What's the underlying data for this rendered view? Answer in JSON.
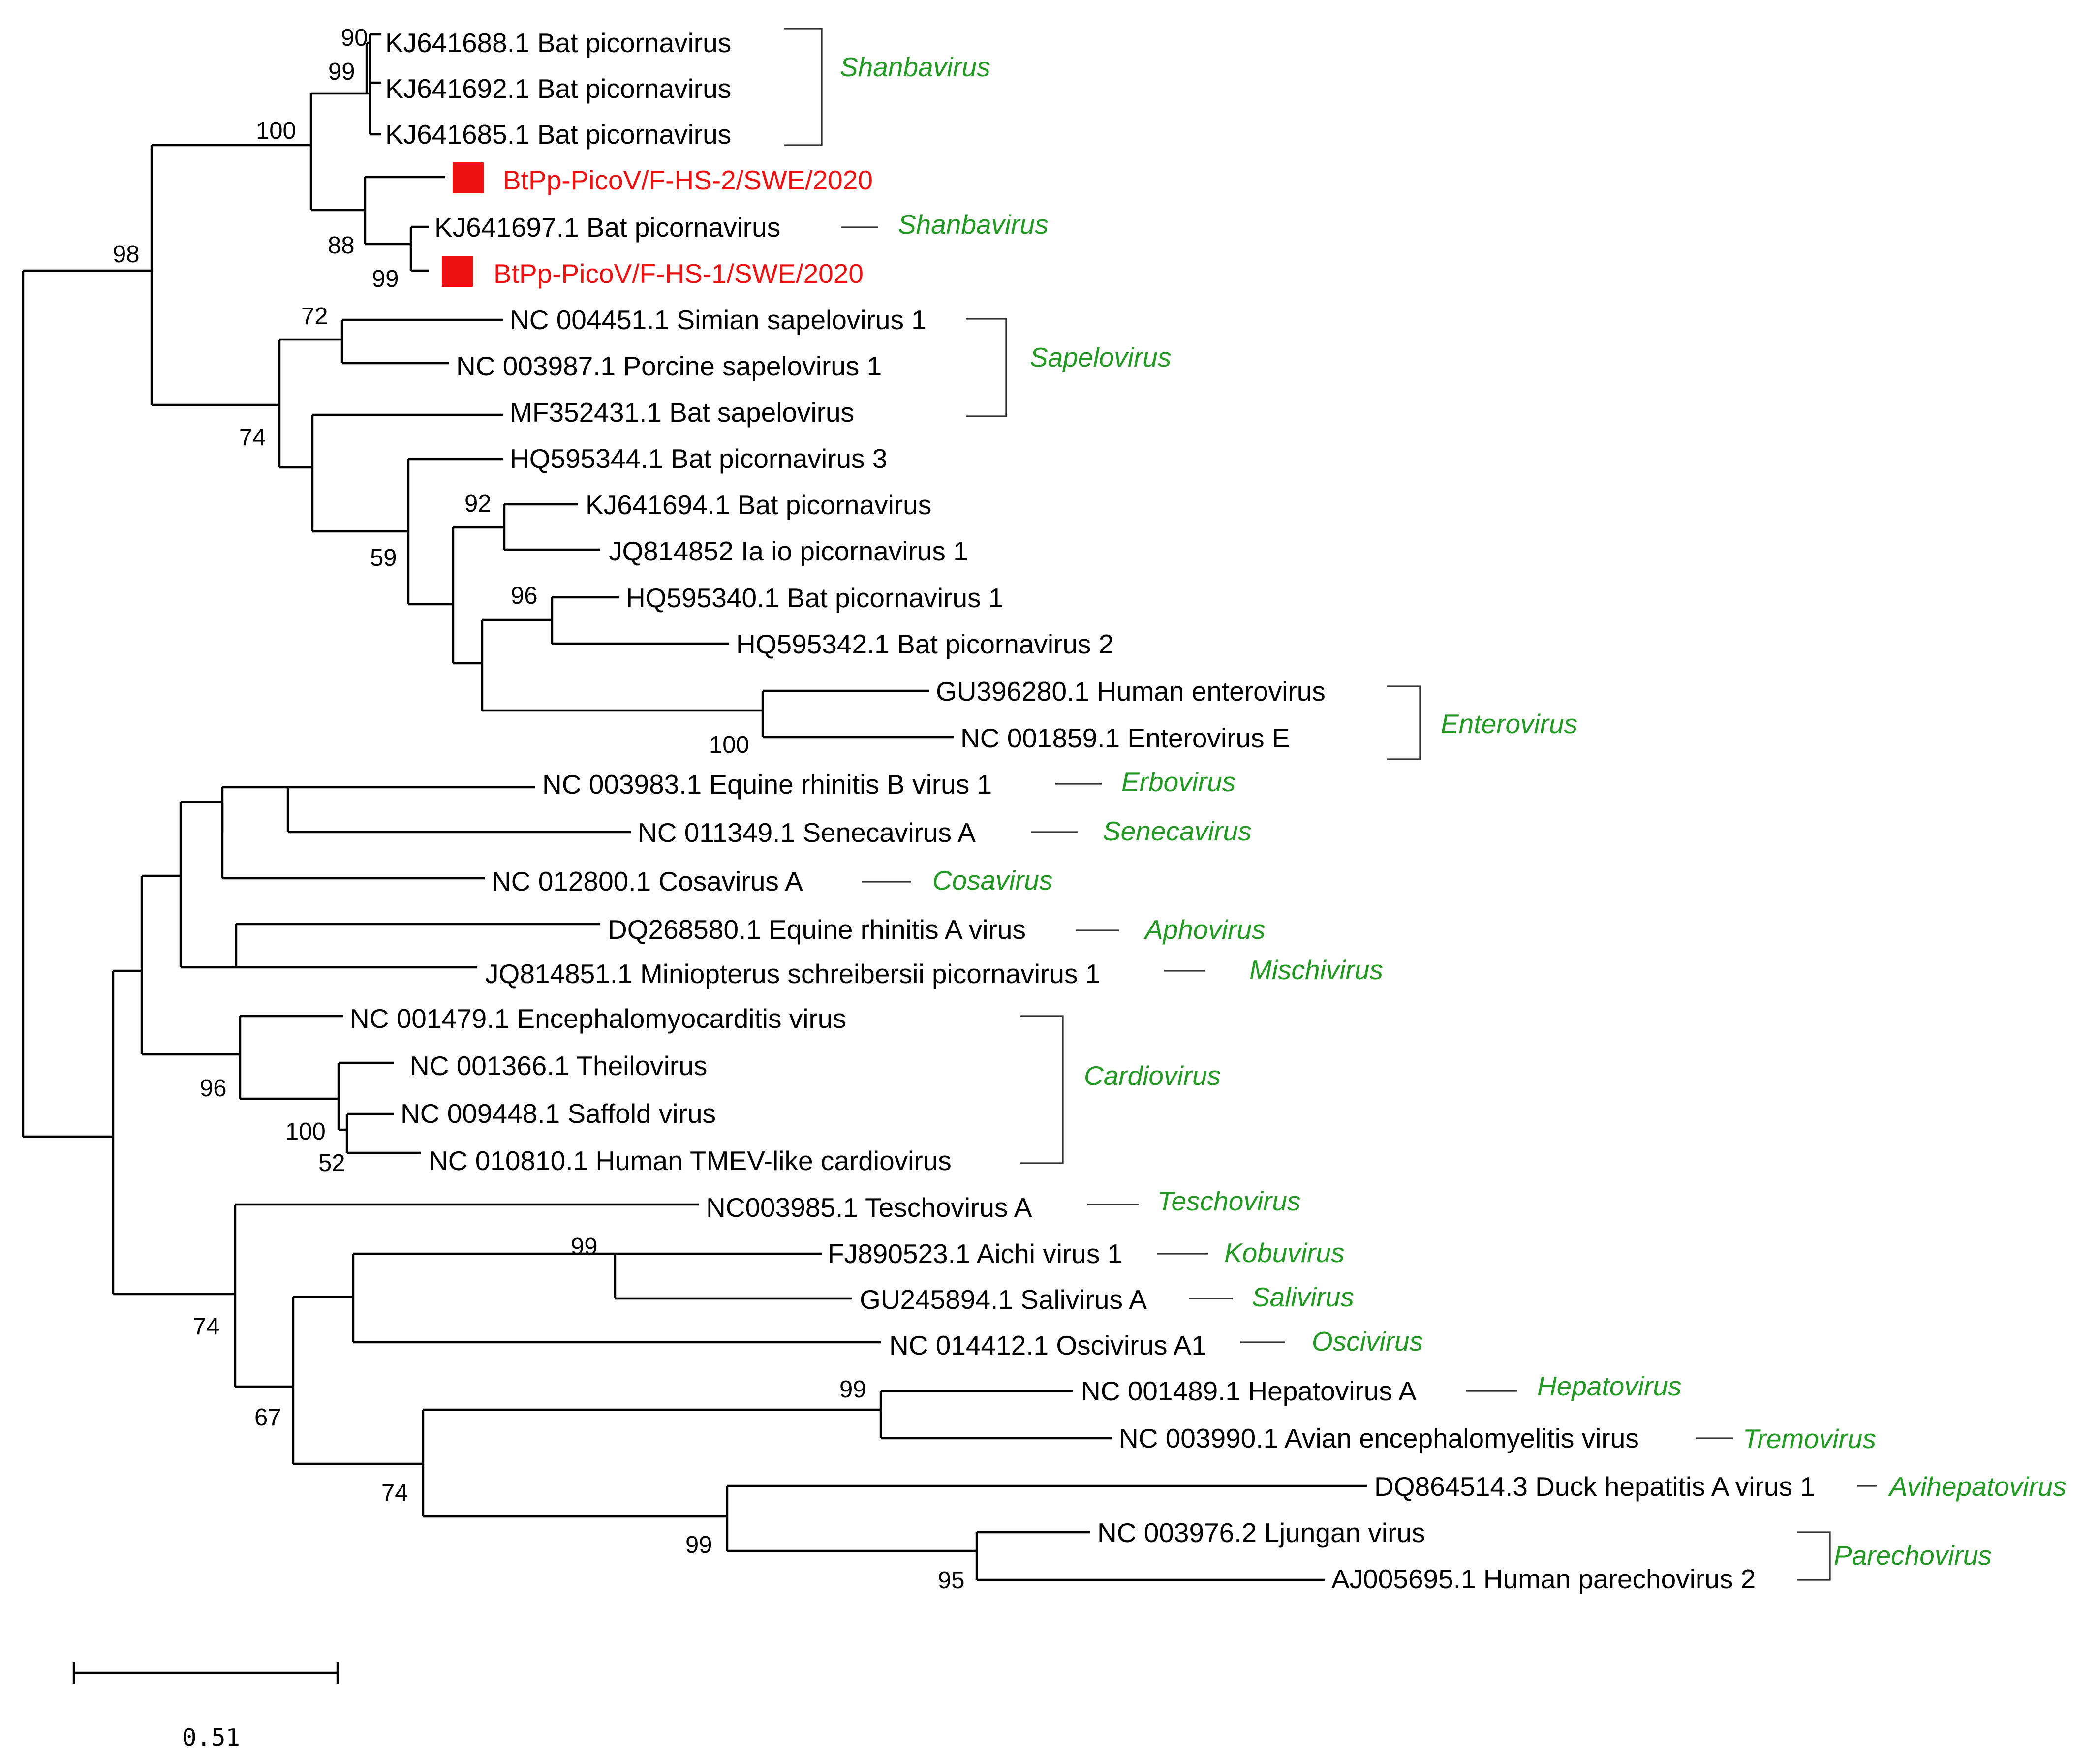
{
  "figure": {
    "type": "phylogenetic-tree",
    "scale_bar": {
      "value": 0.51,
      "label": "0.51"
    },
    "highlight_color": "#ee1111",
    "genus_color": "#229922"
  },
  "taxa": [
    {
      "id": "t1",
      "label": "KJ641688.1 Bat picornavirus"
    },
    {
      "id": "t2",
      "label": "KJ641692.1 Bat picornavirus"
    },
    {
      "id": "t3",
      "label": "KJ641685.1 Bat picornavirus"
    },
    {
      "id": "t4",
      "label": "BtPp-PicoV/F-HS-2/SWE/2020",
      "highlight": true
    },
    {
      "id": "t5",
      "label": "KJ641697.1 Bat picornavirus"
    },
    {
      "id": "t6",
      "label": "BtPp-PicoV/F-HS-1/SWE/2020",
      "highlight": true
    },
    {
      "id": "t7",
      "label": "NC 004451.1 Simian sapelovirus 1"
    },
    {
      "id": "t8",
      "label": "NC 003987.1 Porcine sapelovirus 1"
    },
    {
      "id": "t9",
      "label": "MF352431.1 Bat sapelovirus"
    },
    {
      "id": "t10",
      "label": "HQ595344.1 Bat picornavirus 3"
    },
    {
      "id": "t11",
      "label": "KJ641694.1 Bat picornavirus"
    },
    {
      "id": "t12",
      "label": "JQ814852 Ia io picornavirus 1"
    },
    {
      "id": "t13",
      "label": "HQ595340.1 Bat picornavirus 1"
    },
    {
      "id": "t14",
      "label": "HQ595342.1 Bat picornavirus 2"
    },
    {
      "id": "t15",
      "label": "GU396280.1 Human enterovirus"
    },
    {
      "id": "t16",
      "label": "NC 001859.1 Enterovirus E"
    },
    {
      "id": "t17",
      "label": "NC 003983.1 Equine rhinitis B virus 1"
    },
    {
      "id": "t18",
      "label": "NC 011349.1 Senecavirus A"
    },
    {
      "id": "t19",
      "label": "NC 012800.1 Cosavirus A"
    },
    {
      "id": "t20",
      "label": "DQ268580.1 Equine rhinitis A virus"
    },
    {
      "id": "t21",
      "label": "JQ814851.1 Miniopterus schreibersii picornavirus 1"
    },
    {
      "id": "t22",
      "label": "NC 001479.1 Encephalomyocarditis virus"
    },
    {
      "id": "t23",
      "label": "NC 001366.1 Theilovirus"
    },
    {
      "id": "t24",
      "label": "NC 009448.1 Saffold virus"
    },
    {
      "id": "t25",
      "label": "NC 010810.1 Human TMEV-like cardiovirus"
    },
    {
      "id": "t26",
      "label": "NC003985.1 Teschovirus A"
    },
    {
      "id": "t27",
      "label": "FJ890523.1 Aichi virus 1"
    },
    {
      "id": "t28",
      "label": "GU245894.1 Salivirus A"
    },
    {
      "id": "t29",
      "label": "NC 014412.1 Oscivirus A1"
    },
    {
      "id": "t30",
      "label": "NC 001489.1 Hepatovirus A"
    },
    {
      "id": "t31",
      "label": "NC 003990.1 Avian encephalomyelitis virus"
    },
    {
      "id": "t32",
      "label": "DQ864514.3 Duck hepatitis A virus 1"
    },
    {
      "id": "t33",
      "label": "NC 003976.2 Ljungan virus"
    },
    {
      "id": "t34",
      "label": "AJ005695.1 Human parechovirus 2"
    }
  ],
  "bootstrap": [
    "90",
    "99",
    "100",
    "88",
    "99",
    "98",
    "72",
    "74",
    "92",
    "59",
    "96",
    "100",
    "96",
    "100",
    "52",
    "99",
    "74",
    "67",
    "99",
    "74",
    "99",
    "95"
  ],
  "genera": [
    {
      "name": "Shanbavirus"
    },
    {
      "name": "Shanbavirus"
    },
    {
      "name": "Sapelovirus"
    },
    {
      "name": "Enterovirus"
    },
    {
      "name": "Erbovirus"
    },
    {
      "name": "Senecavirus"
    },
    {
      "name": "Cosavirus"
    },
    {
      "name": "Aphovirus"
    },
    {
      "name": "Mischivirus"
    },
    {
      "name": "Cardiovirus"
    },
    {
      "name": "Teschovirus"
    },
    {
      "name": "Kobuvirus"
    },
    {
      "name": "Salivirus"
    },
    {
      "name": "Oscivirus"
    },
    {
      "name": "Hepatovirus"
    },
    {
      "name": "Tremovirus"
    },
    {
      "name": "Avihepatovirus"
    },
    {
      "name": "Parechovirus"
    }
  ]
}
